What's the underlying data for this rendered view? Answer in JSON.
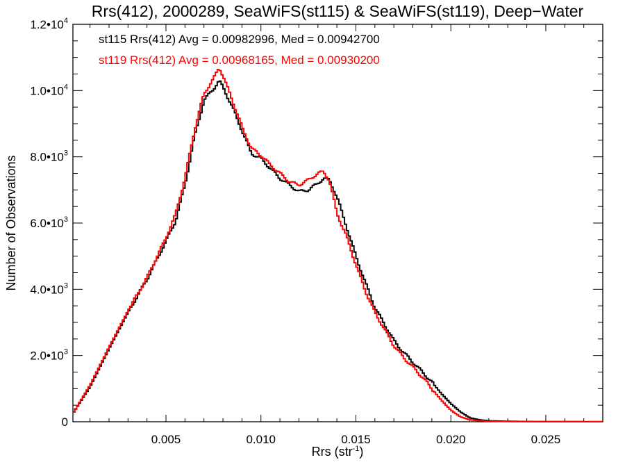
{
  "chart_data": {
    "type": "line",
    "step": true,
    "title": "Rrs(412), 2000289, SeaWiFS(st115) & SeaWiFS(st119), Deep−Water",
    "xlabel": {
      "base": "Rrs (str",
      "sup": "-1",
      "close": ")"
    },
    "ylabel": "Number of Observations",
    "xlim": [
      0.0001,
      0.028
    ],
    "ylim": [
      0,
      12000
    ],
    "xticks": [
      {
        "value": 0.005,
        "label": "0.005"
      },
      {
        "value": 0.01,
        "label": "0.010"
      },
      {
        "value": 0.015,
        "label": "0.015"
      },
      {
        "value": 0.02,
        "label": "0.020"
      },
      {
        "value": 0.025,
        "label": "0.025"
      }
    ],
    "yticks": [
      {
        "value": 0,
        "mant": "0",
        "exp": ""
      },
      {
        "value": 2000,
        "mant": "2.0•10",
        "exp": "3"
      },
      {
        "value": 4000,
        "mant": "4.0•10",
        "exp": "3"
      },
      {
        "value": 6000,
        "mant": "6.0•10",
        "exp": "3"
      },
      {
        "value": 8000,
        "mant": "8.0•10",
        "exp": "3"
      },
      {
        "value": 10000,
        "mant": "1.0•10",
        "exp": "4"
      },
      {
        "value": 12000,
        "mant": "1.2•10",
        "exp": "4"
      }
    ],
    "series": [
      {
        "name": "st115",
        "legend": "st115 Rrs(412) Avg = 0.00982996, Med = 0.00942700",
        "color": "#000000",
        "x": [
          0.0001,
          0.001,
          0.002,
          0.003,
          0.004,
          0.005,
          0.0055,
          0.006,
          0.0065,
          0.007,
          0.0075,
          0.0078,
          0.008,
          0.0085,
          0.009,
          0.0095,
          0.01,
          0.0105,
          0.011,
          0.0115,
          0.012,
          0.0125,
          0.013,
          0.0133,
          0.0136,
          0.014,
          0.0145,
          0.015,
          0.0155,
          0.016,
          0.0165,
          0.017,
          0.0175,
          0.018,
          0.0185,
          0.019,
          0.0195,
          0.02,
          0.0205,
          0.021,
          0.0215,
          0.022,
          0.023,
          0.024,
          0.026,
          0.028
        ],
        "values": [
          250,
          1050,
          2200,
          3300,
          4300,
          5450,
          6050,
          7150,
          8600,
          9700,
          10050,
          10300,
          10100,
          9500,
          8800,
          8100,
          7950,
          7650,
          7350,
          7150,
          6950,
          7000,
          7200,
          7350,
          7300,
          6800,
          5900,
          5000,
          4200,
          3450,
          2950,
          2450,
          2100,
          1800,
          1500,
          1200,
          850,
          550,
          300,
          120,
          60,
          30,
          15,
          8,
          4,
          2
        ]
      },
      {
        "name": "st119",
        "legend": "st119 Rrs(412) Avg = 0.00968165, Med = 0.00930200",
        "color": "#ff0000",
        "x": [
          0.0001,
          0.001,
          0.002,
          0.003,
          0.004,
          0.005,
          0.0055,
          0.006,
          0.0065,
          0.007,
          0.0075,
          0.0078,
          0.008,
          0.0085,
          0.009,
          0.0095,
          0.01,
          0.0105,
          0.011,
          0.0115,
          0.012,
          0.0125,
          0.013,
          0.0133,
          0.0136,
          0.014,
          0.0145,
          0.015,
          0.0155,
          0.016,
          0.0165,
          0.017,
          0.0175,
          0.018,
          0.0185,
          0.019,
          0.0195,
          0.02,
          0.0205,
          0.021,
          0.0215,
          0.022,
          0.023,
          0.024,
          0.026,
          0.028
        ],
        "values": [
          250,
          1100,
          2250,
          3350,
          4350,
          5550,
          6250,
          7350,
          8800,
          9900,
          10350,
          10700,
          10450,
          9700,
          8900,
          8250,
          8050,
          7750,
          7500,
          7250,
          7150,
          7300,
          7500,
          7550,
          7300,
          6300,
          5600,
          4750,
          3950,
          3300,
          2800,
          2300,
          1950,
          1650,
          1350,
          1000,
          650,
          350,
          150,
          60,
          30,
          15,
          8,
          4,
          2,
          1
        ]
      }
    ]
  }
}
